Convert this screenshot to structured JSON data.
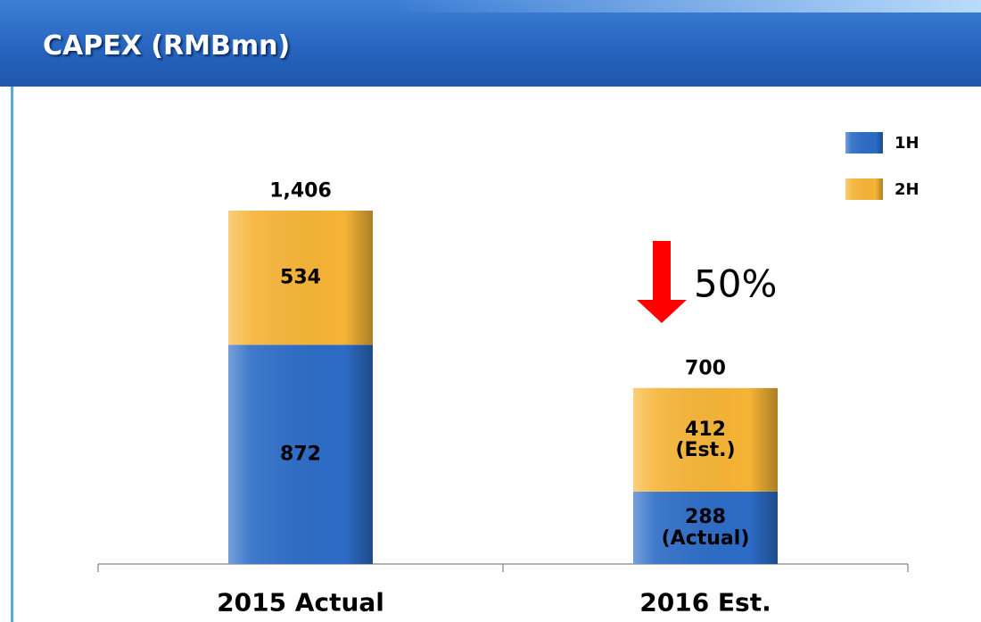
{
  "chart_data": {
    "type": "stacked_bar",
    "title": "CAPEX (RMBmn)",
    "categories": [
      "2015 Actual",
      "2016 Est."
    ],
    "series": [
      {
        "name": "1H",
        "color": "#2c6cc6",
        "values": [
          872,
          288
        ],
        "value_labels": [
          "872",
          "288\n(Actual)"
        ]
      },
      {
        "name": "2H",
        "color": "#f6b436",
        "values": [
          534,
          412
        ],
        "value_labels": [
          "534",
          "412\n(Est.)"
        ]
      }
    ],
    "totals": [
      1406,
      700
    ],
    "total_labels": [
      "1,406",
      "700"
    ],
    "annotation": "50%",
    "ylim": [
      0,
      1406
    ],
    "legend": "top-right"
  }
}
